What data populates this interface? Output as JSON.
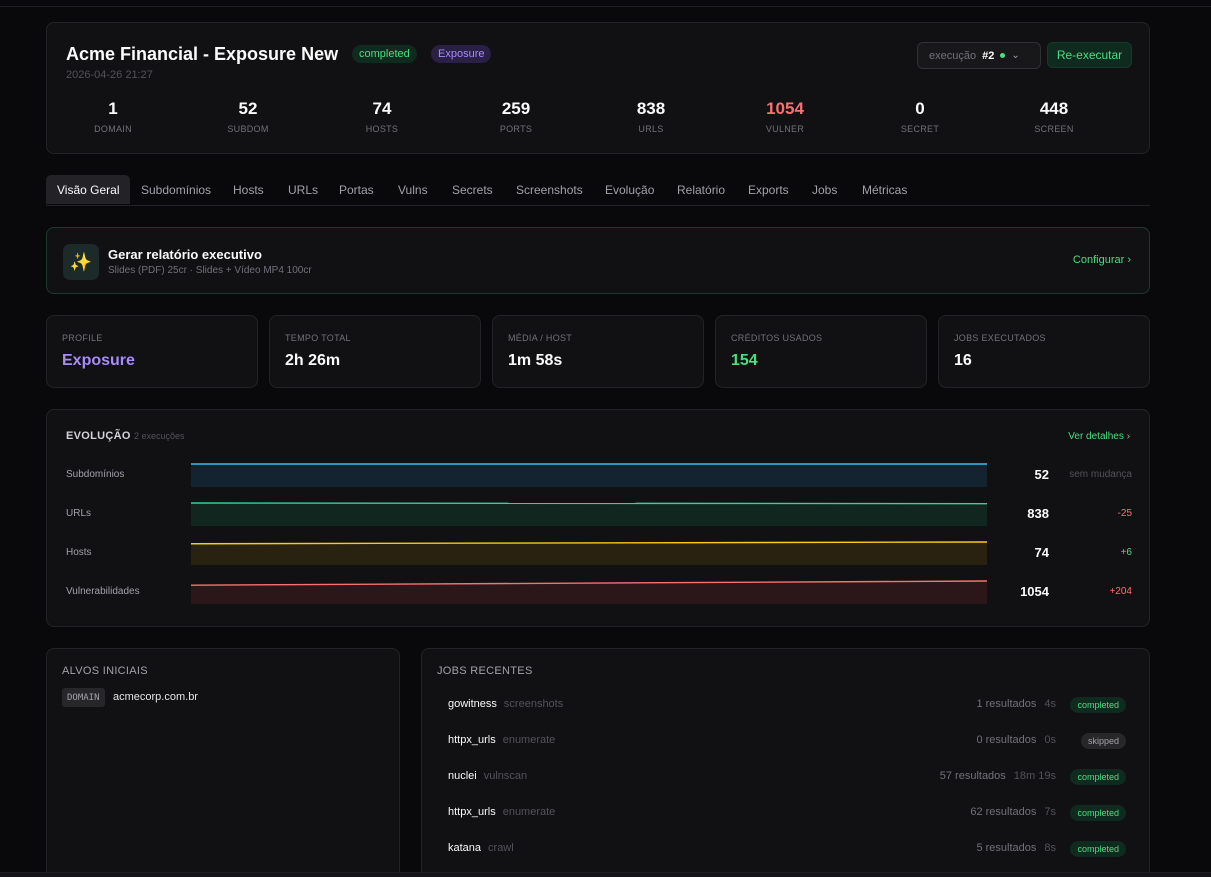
{
  "header": {
    "title": "Acme Financial - Exposure New",
    "status_badge": "completed",
    "profile_badge": "Exposure",
    "date": "2026-04-26 21:27",
    "exec_label": "execução",
    "exec_num": "#2",
    "rerun_label": "Re-executar"
  },
  "stats": [
    {
      "value": "1",
      "label": "DOMAIN",
      "color": "#fafafa"
    },
    {
      "value": "52",
      "label": "SUBDOM",
      "color": "#fafafa"
    },
    {
      "value": "74",
      "label": "HOSTS",
      "color": "#fafafa"
    },
    {
      "value": "259",
      "label": "PORTS",
      "color": "#fafafa"
    },
    {
      "value": "838",
      "label": "URLS",
      "color": "#fafafa"
    },
    {
      "value": "1054",
      "label": "VULNER",
      "color": "#f87171"
    },
    {
      "value": "0",
      "label": "SECRET",
      "color": "#fafafa"
    },
    {
      "value": "448",
      "label": "SCREEN",
      "color": "#fafafa"
    }
  ],
  "tabs": [
    "Visão Geral",
    "Subdomínios",
    "Hosts",
    "URLs",
    "Portas",
    "Vulns",
    "Secrets",
    "Screenshots",
    "Evolução",
    "Relatório",
    "Exports",
    "Jobs",
    "Métricas"
  ],
  "report": {
    "title": "Gerar relatório executivo",
    "subtitle": "Slides (PDF) 25cr · Slides + Vídeo MP4 100cr",
    "configure": "Configurar"
  },
  "metrics": [
    {
      "label": "PROFILE",
      "value": "Exposure",
      "color": "#a78bfa"
    },
    {
      "label": "TEMPO TOTAL",
      "value": "2h 26m",
      "color": "#fafafa"
    },
    {
      "label": "MÉDIA / HOST",
      "value": "1m 58s",
      "color": "#fafafa"
    },
    {
      "label": "CRÉDITOS USADOS",
      "value": "154",
      "color": "#4ade80"
    },
    {
      "label": "JOBS EXECUTADOS",
      "value": "16",
      "color": "#fafafa"
    }
  ],
  "evolution": {
    "title": "EVOLUÇÃO",
    "subtitle": "2 execuções",
    "link": "Ver detalhes",
    "rows": [
      {
        "label": "Subdomínios",
        "value": "52",
        "delta": "sem mudança",
        "delta_color": "#52525b",
        "line": "#38bdf8",
        "fill": "#132430",
        "start": 1.0,
        "end": 1.0
      },
      {
        "label": "URLs",
        "value": "838",
        "delta": "-25",
        "delta_color": "#f87171",
        "line": "#34d399",
        "fill": "#10261e",
        "start": 1.0,
        "end": 0.97
      },
      {
        "label": "Hosts",
        "value": "74",
        "delta": "+6",
        "delta_color": "#4ade80",
        "line": "#facc15",
        "fill": "#2a2210",
        "start": 0.92,
        "end": 1.0
      },
      {
        "label": "Vulnerabilidades",
        "value": "1054",
        "delta": "+204",
        "delta_color": "#f87171",
        "line": "#f87171",
        "fill": "#2b1719",
        "start": 0.81,
        "end": 1.0
      }
    ]
  },
  "alvos": {
    "title": "ALVOS INICIAIS",
    "tag": "DOMAIN",
    "value": "acmecorp.com.br"
  },
  "jobs": {
    "title": "JOBS RECENTES",
    "items": [
      {
        "name": "gowitness",
        "type": "screenshots",
        "results": "1 resultados",
        "time": "4s",
        "status": "completed"
      },
      {
        "name": "httpx_urls",
        "type": "enumerate",
        "results": "0 resultados",
        "time": "0s",
        "status": "skipped"
      },
      {
        "name": "nuclei",
        "type": "vulnscan",
        "results": "57 resultados",
        "time": "18m 19s",
        "status": "completed"
      },
      {
        "name": "httpx_urls",
        "type": "enumerate",
        "results": "62 resultados",
        "time": "7s",
        "status": "completed"
      },
      {
        "name": "katana",
        "type": "crawl",
        "results": "5 resultados",
        "time": "8s",
        "status": "completed"
      }
    ]
  }
}
